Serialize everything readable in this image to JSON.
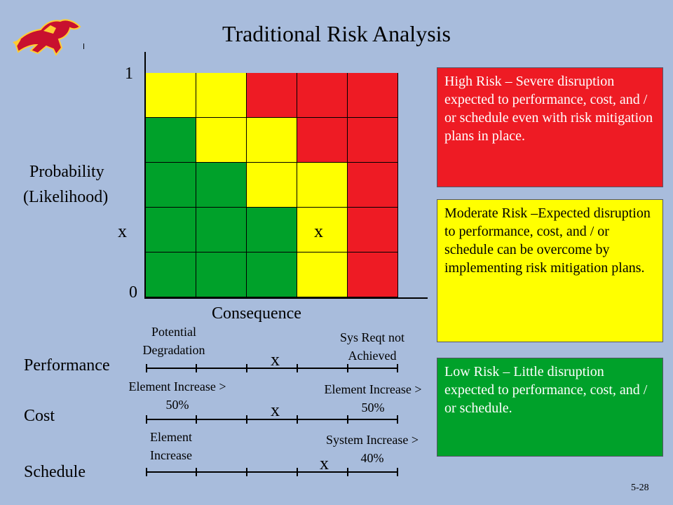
{
  "title": "Traditional Risk Analysis",
  "colors": {
    "red": "#ee1b24",
    "yellow": "#ffff00",
    "green": "#00a12a",
    "background": "#a8bcdc"
  },
  "matrix": {
    "y_axis_label_line1": "Probability",
    "y_axis_label_line2": "(Likelihood)",
    "y_max_label": "1",
    "y_min_label": "0",
    "x_axis_label": "Consequence",
    "rows": [
      [
        "yellow",
        "yellow",
        "red",
        "red",
        "red"
      ],
      [
        "green",
        "yellow",
        "yellow",
        "red",
        "red"
      ],
      [
        "green",
        "green",
        "yellow",
        "yellow",
        "red"
      ],
      [
        "green",
        "green",
        "green",
        "yellow",
        "red"
      ],
      [
        "green",
        "green",
        "green",
        "yellow",
        "red"
      ]
    ],
    "row_marker": "x",
    "cell_marker": "x"
  },
  "scales": {
    "performance": {
      "label": "Performance",
      "left_note": "Potential Degradation",
      "right_note": "Sys Reqt not Achieved",
      "marker": "x"
    },
    "cost": {
      "label": "Cost",
      "left_note": "Element Increase > 50%",
      "right_note": "Element Increase > 50%",
      "marker": "x"
    },
    "schedule": {
      "label": "Schedule",
      "left_note": "Element Increase",
      "right_note": "System Increase > 40%",
      "marker": "x"
    }
  },
  "legend": {
    "high": "High Risk – Severe disruption expected to performance, cost, and / or schedule even with risk mitigation plans in place.",
    "moderate": "Moderate Risk –Expected disruption to performance, cost, and / or schedule can be overcome by implementing risk mitigation plans.",
    "low": "Low Risk – Little disruption expected to performance, cost, and / or schedule."
  },
  "page_number": "5-28",
  "logo_icon": "mustang-horse-icon"
}
